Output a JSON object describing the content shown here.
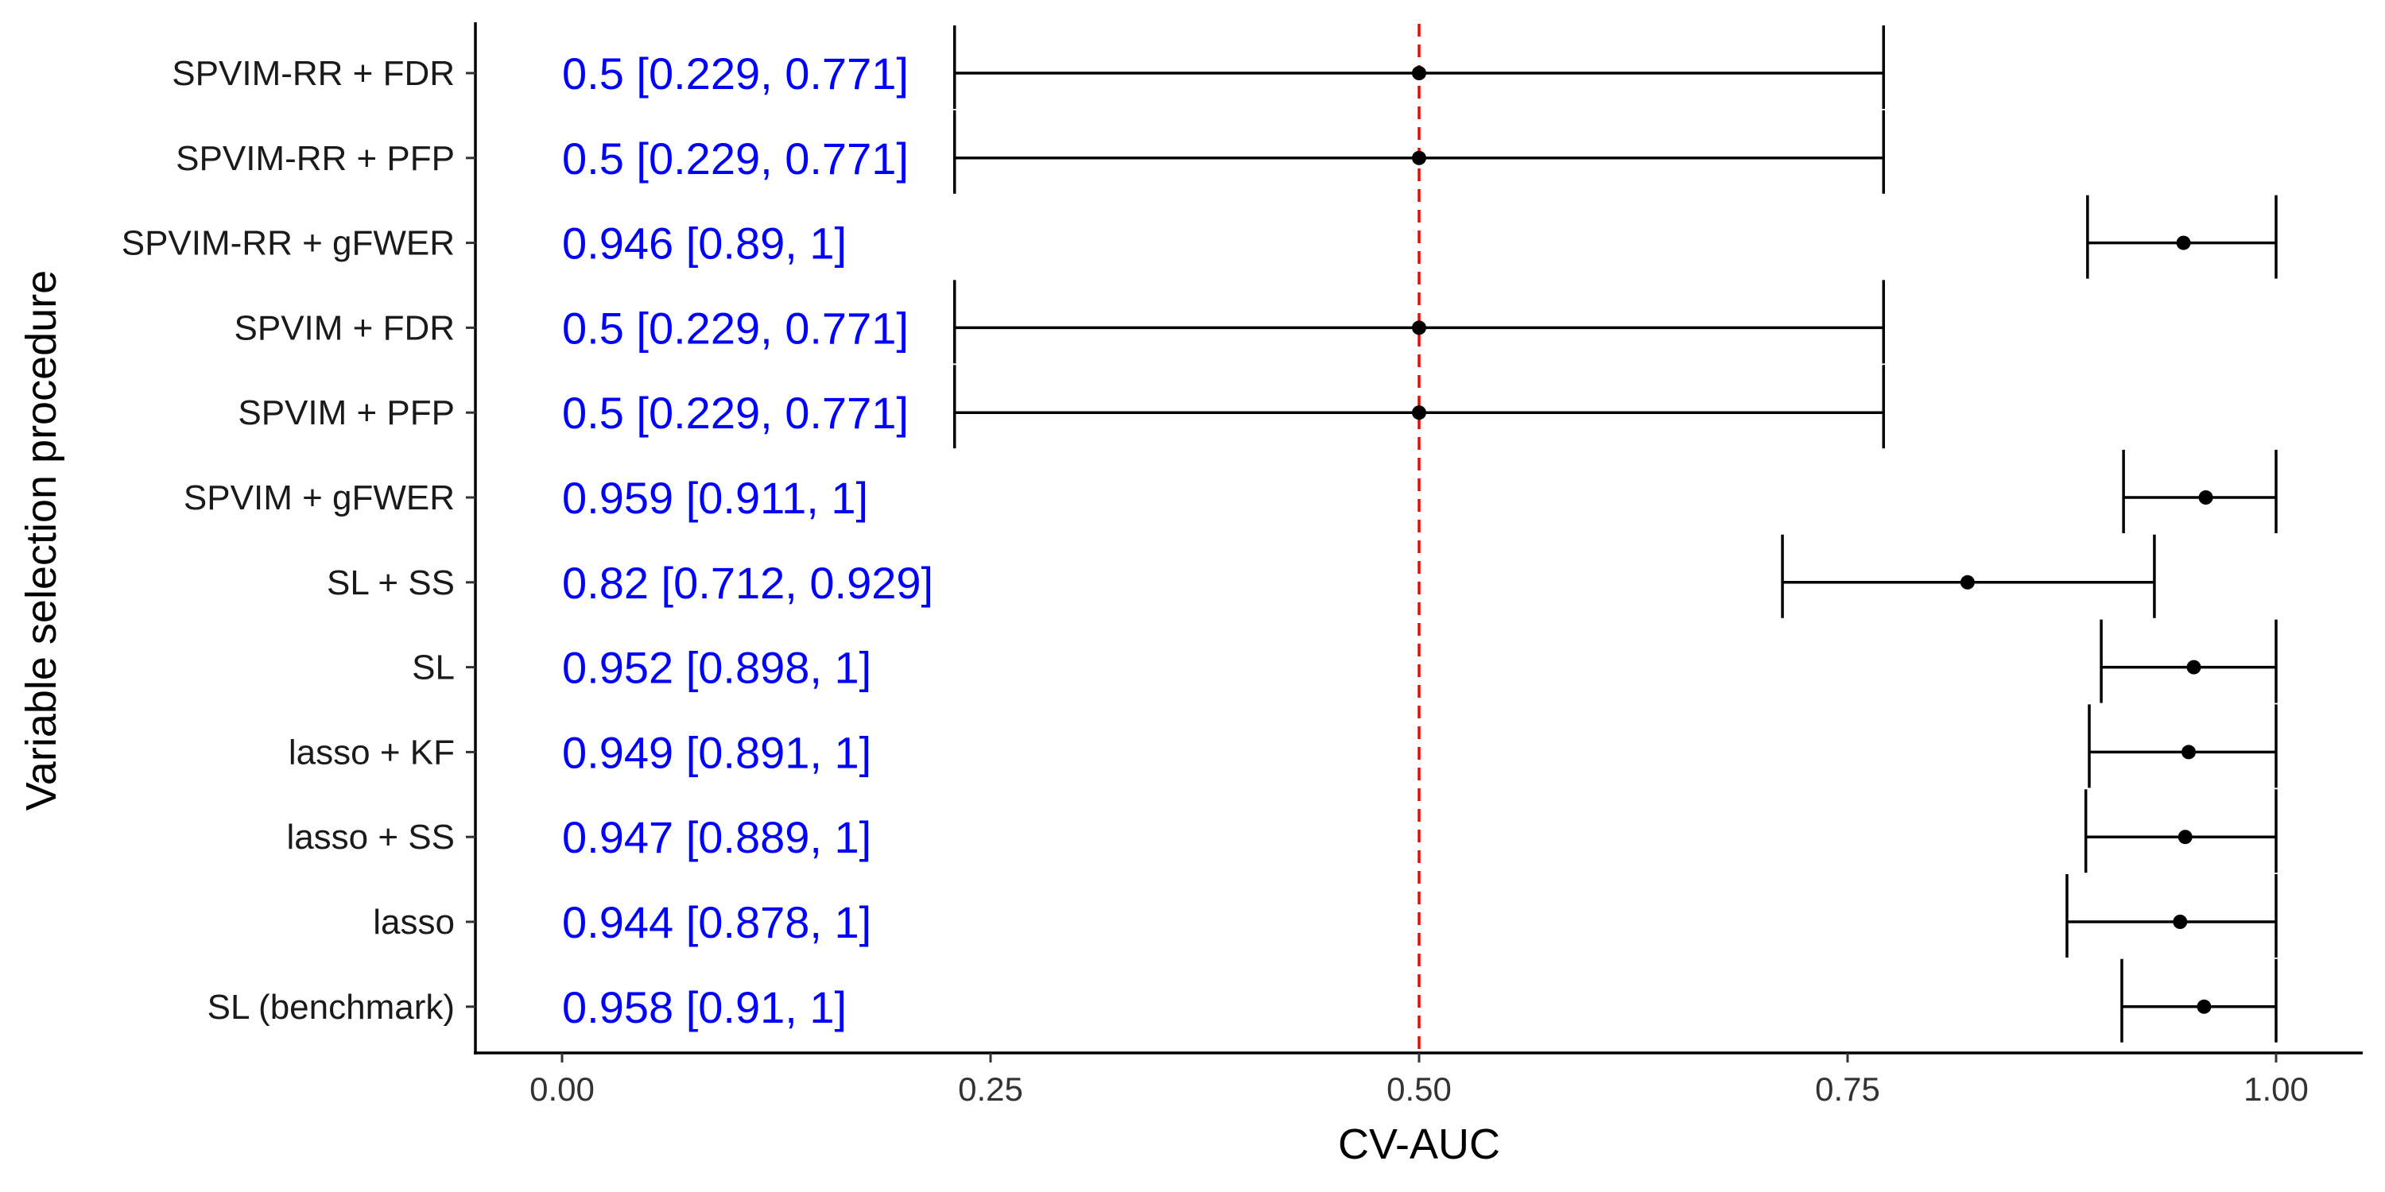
{
  "chart_data": {
    "type": "forest",
    "title": "",
    "xlabel": "CV-AUC",
    "ylabel": "Variable selection procedure",
    "xlim": [
      -0.05,
      1.05
    ],
    "x_ticks": [
      0.0,
      0.25,
      0.5,
      0.75,
      1.0
    ],
    "x_tick_labels": [
      "0.00",
      "0.25",
      "0.50",
      "0.75",
      "1.00"
    ],
    "reference_line": {
      "x": 0.5,
      "color": "#ff0000",
      "style": "dashed"
    },
    "grid": false,
    "rows": [
      {
        "label": "SPVIM-RR + FDR",
        "estimate": 0.5,
        "lower": 0.229,
        "upper": 0.771,
        "text": "0.5 [0.229, 0.771]"
      },
      {
        "label": "SPVIM-RR + PFP",
        "estimate": 0.5,
        "lower": 0.229,
        "upper": 0.771,
        "text": "0.5 [0.229, 0.771]"
      },
      {
        "label": "SPVIM-RR + gFWER",
        "estimate": 0.946,
        "lower": 0.89,
        "upper": 1.0,
        "text": "0.946 [0.89, 1]"
      },
      {
        "label": "SPVIM + FDR",
        "estimate": 0.5,
        "lower": 0.229,
        "upper": 0.771,
        "text": "0.5 [0.229, 0.771]"
      },
      {
        "label": "SPVIM + PFP",
        "estimate": 0.5,
        "lower": 0.229,
        "upper": 0.771,
        "text": "0.5 [0.229, 0.771]"
      },
      {
        "label": "SPVIM + gFWER",
        "estimate": 0.959,
        "lower": 0.911,
        "upper": 1.0,
        "text": "0.959 [0.911, 1]"
      },
      {
        "label": "SL + SS",
        "estimate": 0.82,
        "lower": 0.712,
        "upper": 0.929,
        "text": "0.82 [0.712, 0.929]"
      },
      {
        "label": "SL",
        "estimate": 0.952,
        "lower": 0.898,
        "upper": 1.0,
        "text": "0.952 [0.898, 1]"
      },
      {
        "label": "lasso + KF",
        "estimate": 0.949,
        "lower": 0.891,
        "upper": 1.0,
        "text": "0.949 [0.891, 1]"
      },
      {
        "label": "lasso + SS",
        "estimate": 0.947,
        "lower": 0.889,
        "upper": 1.0,
        "text": "0.947 [0.889, 1]"
      },
      {
        "label": "lasso",
        "estimate": 0.944,
        "lower": 0.878,
        "upper": 1.0,
        "text": "0.944 [0.878, 1]"
      },
      {
        "label": "SL (benchmark)",
        "estimate": 0.958,
        "lower": 0.91,
        "upper": 1.0,
        "text": "0.958 [0.91, 1]"
      }
    ],
    "colors": {
      "point": "#000000",
      "interval": "#000000",
      "value_text": "#0000ff",
      "reference": "#ff0000"
    }
  }
}
